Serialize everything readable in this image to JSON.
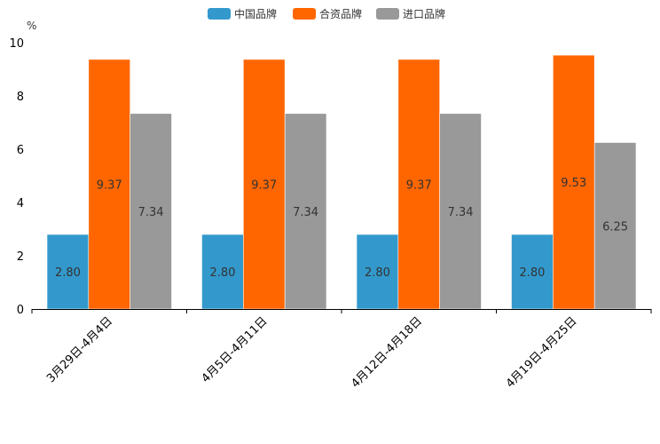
{
  "chart_data": {
    "type": "bar",
    "title": "",
    "xlabel": "",
    "ylabel": "%",
    "ylim": [
      0,
      10
    ],
    "yticks": [
      "0",
      "2",
      "4",
      "6",
      "8",
      "10"
    ],
    "grid": false,
    "legend_position": "top-center",
    "categories": [
      "3月29日-4月4日",
      "4月5日-4月11日",
      "4月12日-4月18日",
      "4月19日-4月25日"
    ],
    "series": [
      {
        "name": "中国品牌",
        "color": "#3399cc",
        "values": [
          2.8,
          2.8,
          2.8,
          2.8
        ],
        "labels": [
          "2.80",
          "2.80",
          "2.80",
          "2.80"
        ]
      },
      {
        "name": "合资品牌",
        "color": "#ff6600",
        "values": [
          9.37,
          9.37,
          9.37,
          9.53
        ],
        "labels": [
          "9.37",
          "9.37",
          "9.37",
          "9.53"
        ]
      },
      {
        "name": "进口品牌",
        "color": "#999999",
        "values": [
          7.34,
          7.34,
          7.34,
          6.25
        ],
        "labels": [
          "7.34",
          "7.34",
          "7.34",
          "6.25"
        ]
      }
    ]
  }
}
